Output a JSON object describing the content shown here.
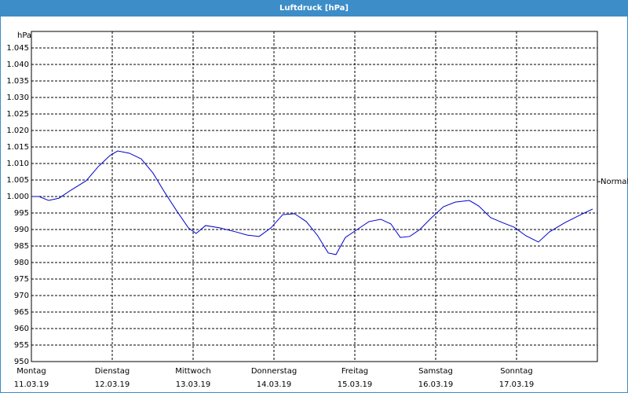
{
  "chart_data": {
    "type": "line",
    "title": "Luftdruck [hPa]",
    "y_unit": "hPa",
    "xlim": [
      0,
      168
    ],
    "ylim": [
      950,
      1050
    ],
    "xticks": [
      {
        "value": 0,
        "label": "Montag",
        "date": "11.03.19"
      },
      {
        "value": 24,
        "label": "Dienstag",
        "date": "12.03.19"
      },
      {
        "value": 48,
        "label": "Mittwoch",
        "date": "13.03.19"
      },
      {
        "value": 72,
        "label": "Donnerstag",
        "date": "14.03.19"
      },
      {
        "value": 96,
        "label": "Freitag",
        "date": "15.03.19"
      },
      {
        "value": 120,
        "label": "Samstag",
        "date": "16.03.19"
      },
      {
        "value": 144,
        "label": "Sonntag",
        "date": "17.03.19"
      }
    ],
    "yticks": [
      950,
      955,
      960,
      965,
      970,
      975,
      980,
      985,
      990,
      995,
      {
        "value": 1000,
        "label": "1.000"
      },
      {
        "value": 1005,
        "label": "1.005"
      },
      {
        "value": 1010,
        "label": "1.010"
      },
      {
        "value": 1015,
        "label": "1.015"
      },
      {
        "value": 1020,
        "label": "1.020"
      },
      {
        "value": 1025,
        "label": "1.025"
      },
      {
        "value": 1030,
        "label": "1.030"
      },
      {
        "value": 1035,
        "label": "1.035"
      },
      {
        "value": 1040,
        "label": "1.040"
      },
      {
        "value": 1045,
        "label": "1.045"
      }
    ],
    "grid": true,
    "annotation": {
      "text": "Normal",
      "value": 1004.5
    },
    "series": [
      {
        "color": "#0000cc",
        "x": [
          0,
          2.3,
          5.1,
          8.2,
          11.7,
          16.3,
          19.8,
          23.3,
          25.6,
          29.1,
          32.6,
          36.1,
          39.6,
          43.1,
          46.6,
          48.9,
          51.7,
          55.9,
          60.6,
          64.1,
          67.6,
          71.1,
          74.6,
          78.1,
          81.6,
          85.0,
          88.1,
          90.4,
          93.2,
          96.7,
          100.2,
          103.7,
          106.7,
          109.5,
          112.3,
          115.3,
          118.8,
          122.3,
          125.8,
          130.0,
          132.8,
          136.3,
          139.8,
          143.3,
          146.8,
          150.5,
          153.8,
          158.4,
          163.1,
          166.6
        ],
        "values": [
          1000,
          1000,
          998.8,
          999.5,
          1001.9,
          1004.8,
          1009,
          1012.4,
          1013.8,
          1013.1,
          1011.4,
          1007.1,
          1001.2,
          995.7,
          990.5,
          988.8,
          991.2,
          990.5,
          989.3,
          988.3,
          987.9,
          990.5,
          994.5,
          994.8,
          992.4,
          988.1,
          982.9,
          982.4,
          987.6,
          990,
          992.4,
          993.1,
          991.7,
          987.6,
          987.9,
          990,
          993.6,
          996.9,
          998.3,
          998.8,
          997.1,
          993.6,
          992.1,
          990.7,
          988.1,
          986.2,
          989.3,
          992.1,
          994.5,
          996.2
        ]
      }
    ]
  }
}
